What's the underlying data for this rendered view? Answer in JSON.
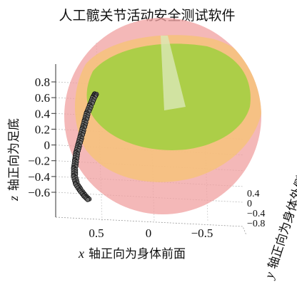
{
  "chart_data": {
    "type": "scatter",
    "title": "人工髋关节活动安全测试软件",
    "axes": {
      "x": {
        "var": "x",
        "label": "轴正向为身体前面",
        "ticks": [
          "0.5",
          "0",
          "−0.5"
        ],
        "range": [
          1.0,
          -1.0
        ]
      },
      "y": {
        "var": "y",
        "label": "轴正向为身体外侧",
        "ticks": [
          "0.4",
          "0",
          "−0.4",
          "−0.8"
        ],
        "range": [
          0.5,
          -0.9
        ]
      },
      "z": {
        "var": "z",
        "label": "轴正向为足底",
        "ticks": [
          "0.8",
          "0.6",
          "0.4",
          "0.2",
          "0",
          "−0.2",
          "−0.4",
          "−0.6"
        ],
        "range": [
          -0.7,
          0.95
        ]
      }
    },
    "grid": true,
    "surfaces": [
      {
        "name": "outer-sphere",
        "color": "#f0a0a0",
        "opacity": 0.7
      },
      {
        "name": "middle-layer",
        "color": "#f6c27a",
        "opacity": 0.8
      },
      {
        "name": "inner-cone",
        "color": "#a8cf45",
        "opacity": 0.95
      }
    ],
    "series": [
      {
        "marker": "circle",
        "color": "#222222",
        "points": [
          [
            0.5,
            0.0,
            0.65
          ],
          [
            0.52,
            0.0,
            0.6
          ],
          [
            0.55,
            0.0,
            0.5
          ],
          [
            0.58,
            0.0,
            0.4
          ],
          [
            0.6,
            0.0,
            0.3
          ],
          [
            0.62,
            0.0,
            0.2
          ],
          [
            0.64,
            0.0,
            0.1
          ],
          [
            0.66,
            0.0,
            0.0
          ],
          [
            0.68,
            0.0,
            -0.1
          ],
          [
            0.69,
            0.0,
            -0.2
          ],
          [
            0.7,
            0.0,
            -0.3
          ],
          [
            0.7,
            0.0,
            -0.4
          ],
          [
            0.68,
            0.0,
            -0.5
          ],
          [
            0.64,
            0.0,
            -0.58
          ],
          [
            0.6,
            0.0,
            -0.65
          ],
          [
            0.56,
            0.0,
            -0.7
          ]
        ]
      }
    ]
  }
}
